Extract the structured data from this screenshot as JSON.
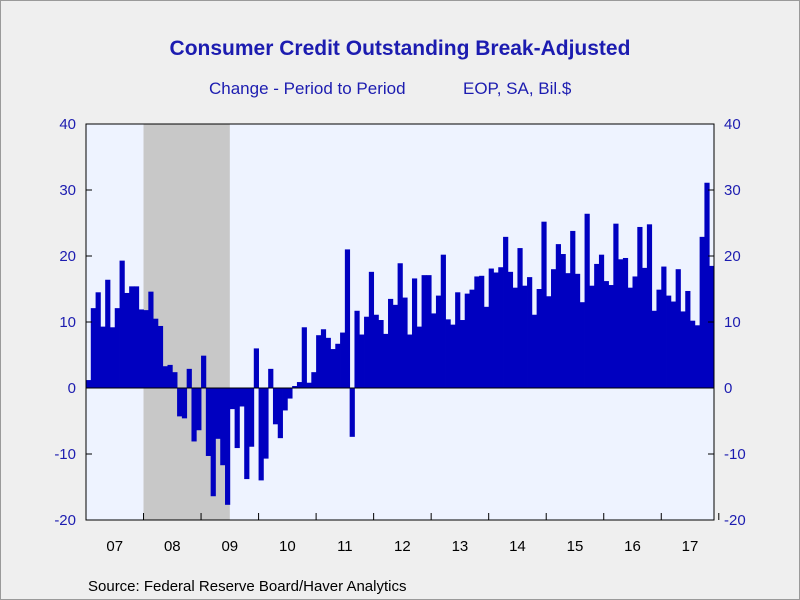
{
  "header": {
    "title": "Consumer Credit Outstanding Break-Adjusted",
    "subtitle_left": "Change - Period to Period",
    "subtitle_right": "EOP, SA, Bil.$"
  },
  "footer": {
    "source": "Source:  Federal Reserve Board/Haver Analytics"
  },
  "colors": {
    "bar": "#0000c0",
    "plot_background": "#eef3ff",
    "recession_shade": "#c8c8c8",
    "axis_text": "#1c1cb0",
    "page_background": "#efefef"
  },
  "chart_data": {
    "type": "bar",
    "title": "Consumer Credit Outstanding Break-Adjusted",
    "subtitle": "Change - Period to Period    EOP, SA, Bil.$",
    "start": "2007-01",
    "frequency": "monthly",
    "ylim": [
      -20,
      40
    ],
    "yticks": [
      -20,
      -10,
      0,
      10,
      20,
      30,
      40
    ],
    "x_tick_labels": [
      "07",
      "08",
      "09",
      "10",
      "11",
      "12",
      "13",
      "14",
      "15",
      "16",
      "17"
    ],
    "grid": false,
    "dual_y_axis": true,
    "recession_shading": [
      {
        "start": "2008-01",
        "end": "2009-06"
      }
    ],
    "series": [
      {
        "values": [
          1.2,
          12.1,
          14.5,
          9.3,
          16.4,
          9.2,
          12.1,
          19.3,
          14.4,
          15.4,
          15.4,
          11.9,
          11.8,
          14.6,
          10.5,
          9.4,
          3.3,
          3.5,
          2.4,
          -4.3,
          -4.6,
          2.9,
          -8.1,
          -6.4,
          4.9,
          -10.3,
          -16.4,
          -7.7,
          -11.7,
          -17.7,
          -3.2,
          -9.1,
          -2.8,
          -13.8,
          -8.9,
          6.0,
          -14.0,
          -10.7,
          2.9,
          -5.5,
          -7.6,
          -3.4,
          -1.6,
          0.3,
          0.9,
          9.2,
          0.8,
          2.4,
          8.0,
          8.9,
          7.6,
          5.9,
          6.7,
          8.4,
          21.0,
          -7.4,
          11.7,
          8.1,
          10.8,
          17.6,
          11.1,
          10.3,
          8.2,
          13.5,
          12.6,
          18.9,
          13.7,
          8.1,
          16.6,
          9.3,
          17.1,
          17.1,
          11.3,
          14.0,
          20.2,
          10.4,
          9.6,
          14.5,
          10.3,
          14.3,
          14.9,
          16.9,
          17.0,
          12.3,
          18.1,
          17.5,
          18.3,
          22.9,
          17.6,
          15.2,
          21.2,
          15.5,
          16.8,
          11.1,
          15.0,
          25.2,
          13.9,
          18.0,
          21.8,
          20.3,
          17.4,
          23.8,
          17.3,
          13.0,
          26.4,
          15.5,
          18.8,
          20.2,
          16.2,
          15.6,
          24.9,
          19.5,
          19.7,
          15.2,
          16.9,
          24.4,
          18.2,
          24.8,
          11.7,
          14.9,
          18.4,
          14.0,
          13.1,
          18.0,
          11.6,
          14.7,
          10.2,
          9.5,
          22.9,
          31.1,
          18.5
        ]
      }
    ]
  }
}
